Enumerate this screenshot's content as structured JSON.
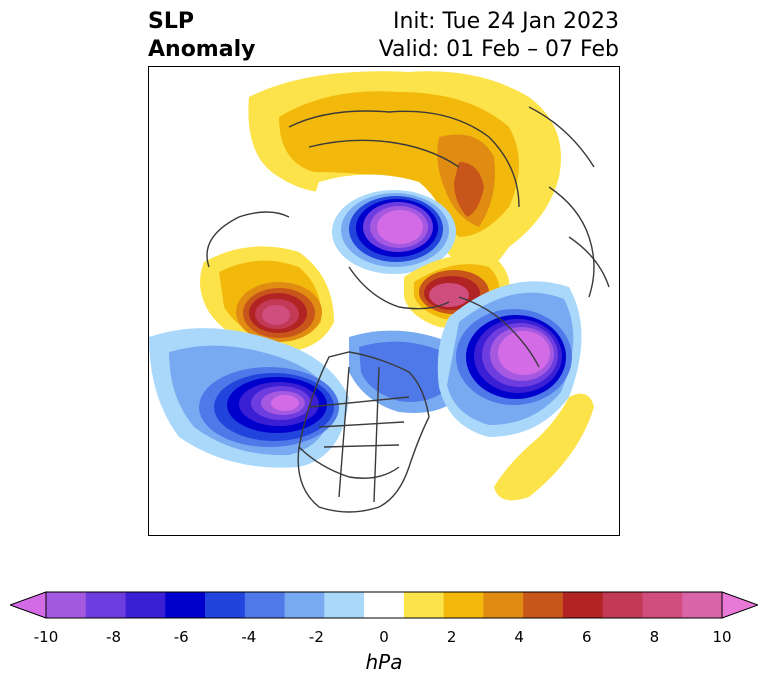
{
  "title": {
    "left_line1": "SLP",
    "left_line2": "Anomaly",
    "init": "Init: Tue 24 Jan 2023",
    "valid": "Valid: 01 Feb – 07 Feb"
  },
  "colorbar": {
    "unit": "hPa",
    "tick_labels": [
      "-10",
      "-8",
      "-6",
      "-4",
      "-2",
      "0",
      "2",
      "4",
      "6",
      "8",
      "10"
    ],
    "colors": [
      "#d46be6",
      "#a459e0",
      "#6e3de0",
      "#3a1fd4",
      "#0000cc",
      "#2244dd",
      "#4f78e8",
      "#78aaf2",
      "#aad8fa",
      "#ffffff",
      "#fde34a",
      "#f2b90c",
      "#e08c12",
      "#c8561b",
      "#b22424",
      "#c23a55",
      "#d04e7e",
      "#d964a8",
      "#e879d6"
    ]
  },
  "map": {
    "projection": "north-polar-stereographic",
    "variable": "sea-level-pressure-anomaly"
  }
}
